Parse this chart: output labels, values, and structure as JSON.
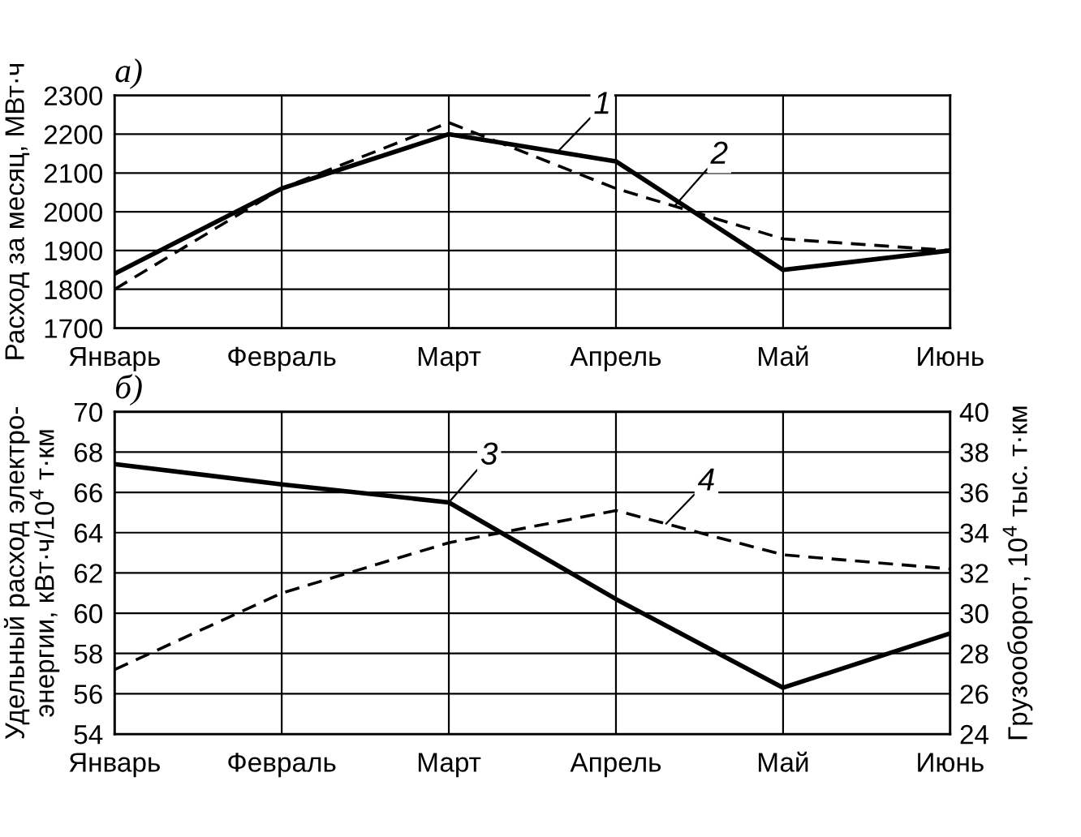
{
  "chart_data": [
    {
      "type": "line",
      "title": "а)",
      "ylabel": "Расход за месяц, МВт·ч",
      "categories": [
        "Январь",
        "Февраль",
        "Март",
        "Апрель",
        "Май",
        "Июнь"
      ],
      "series": [
        {
          "name": "1",
          "color": "#000000",
          "line_style": "solid",
          "values": [
            1840,
            2060,
            2200,
            2130,
            1850,
            1900
          ]
        },
        {
          "name": "2",
          "color": "#000000",
          "line_style": "dashed",
          "values": [
            1800,
            2060,
            2230,
            2060,
            1930,
            1900
          ]
        }
      ],
      "ylim": [
        1700,
        2300
      ],
      "yticks": [
        1700,
        1800,
        1900,
        2000,
        2100,
        2200,
        2300
      ],
      "grid": true,
      "legend": false
    },
    {
      "type": "line",
      "title": "б)",
      "ylabel": "Удельный расход электро-\nэнергии, кВт·ч/10$^{4}$ т·км",
      "y2label": "Грузооборот, 10$^{4}$ тыс. т·км",
      "categories": [
        "Январь",
        "Февраль",
        "Март",
        "Апрель",
        "Май",
        "Июнь"
      ],
      "series": [
        {
          "name": "3",
          "color": "#000000",
          "line_style": "solid",
          "values": [
            67.4,
            66.4,
            65.5,
            60.7,
            56.3,
            59.0
          ]
        },
        {
          "name": "4",
          "color": "#000000",
          "line_style": "dashed",
          "axis": "y2",
          "values": [
            27.2,
            31.0,
            33.5,
            35.1,
            32.9,
            32.2
          ]
        }
      ],
      "ylim": [
        54,
        70
      ],
      "yticks": [
        54,
        56,
        58,
        60,
        62,
        64,
        66,
        68,
        70
      ],
      "y2lim": [
        24,
        40
      ],
      "y2ticks": [
        24,
        26,
        28,
        30,
        32,
        34,
        36,
        38,
        40
      ],
      "grid": true,
      "legend": false
    }
  ]
}
